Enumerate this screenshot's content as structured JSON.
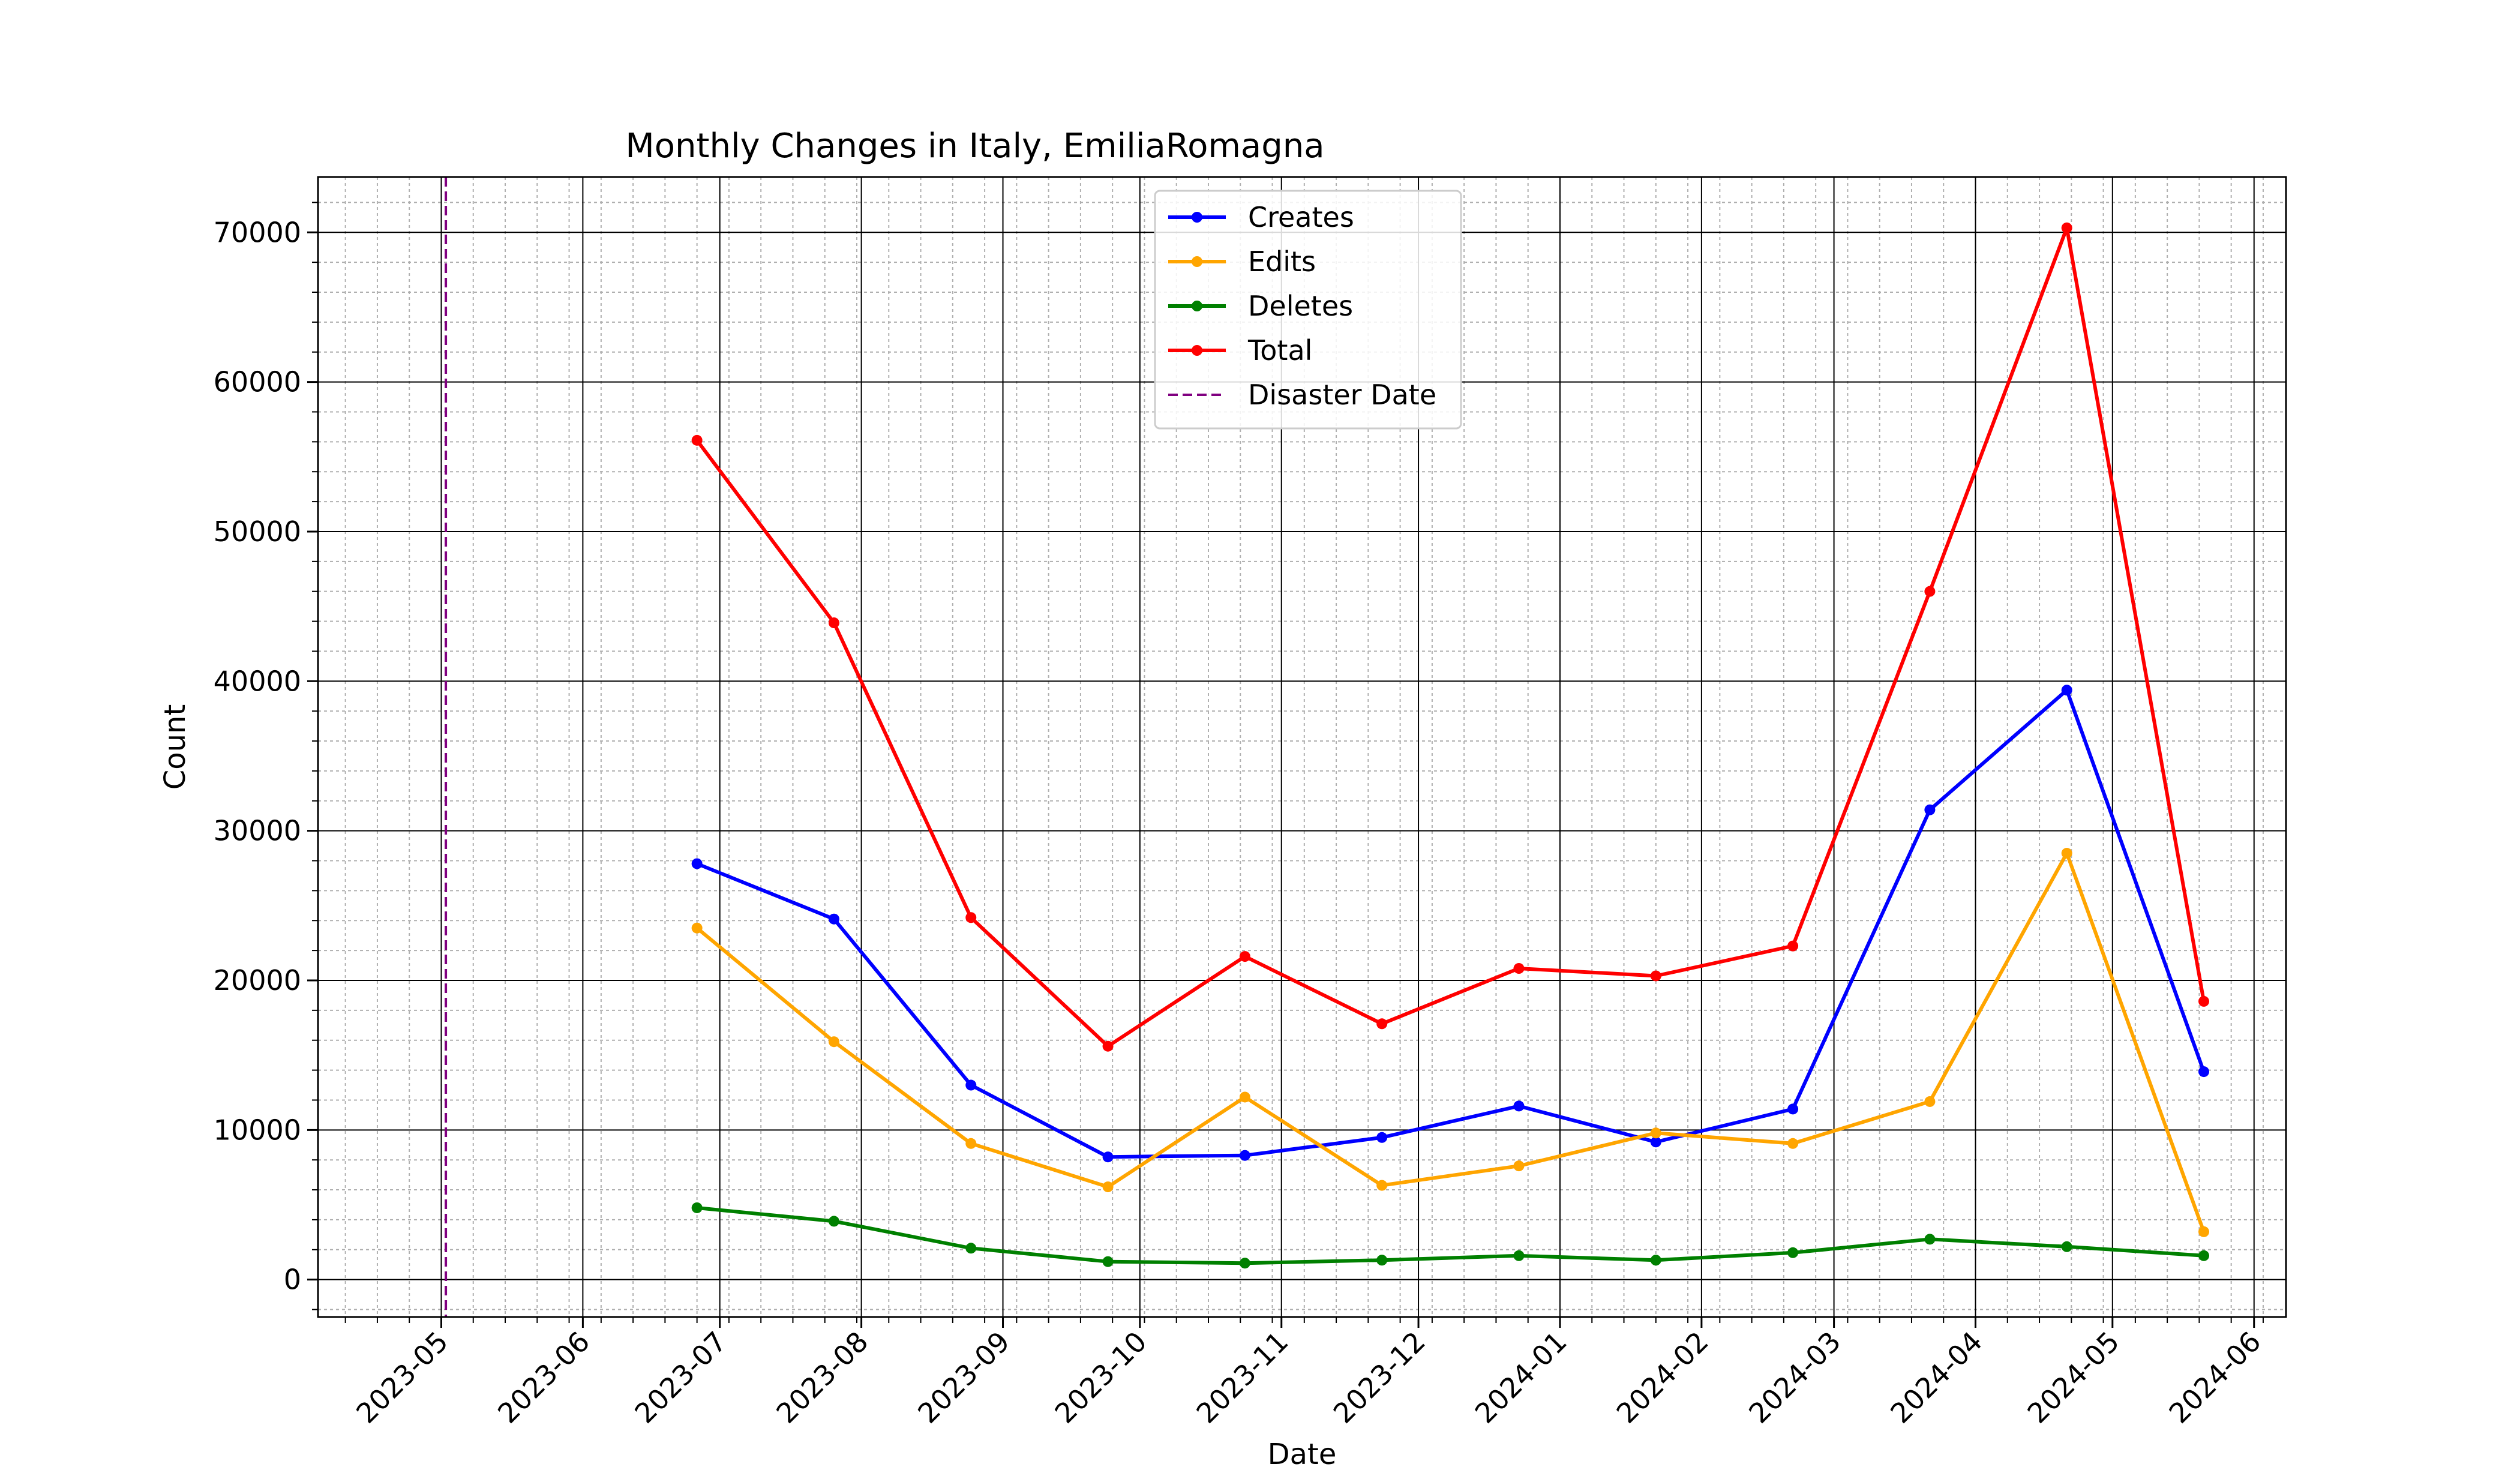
{
  "chart_data": {
    "type": "line",
    "title": "Monthly Changes in Italy, EmiliaRomagna",
    "xlabel": "Date",
    "ylabel": "Count",
    "x_type": "date",
    "xlim": [
      "2023-04-04",
      "2024-06-08"
    ],
    "ylim": [
      -2500,
      73700
    ],
    "x_ticks": [
      "2023-05",
      "2023-06",
      "2023-07",
      "2023-08",
      "2023-09",
      "2023-10",
      "2023-11",
      "2023-12",
      "2024-01",
      "2024-02",
      "2024-03",
      "2024-04",
      "2024-05",
      "2024-06"
    ],
    "y_ticks": [
      0,
      10000,
      20000,
      30000,
      40000,
      50000,
      60000,
      70000
    ],
    "y_tick_labels": [
      "0",
      "10000",
      "20000",
      "30000",
      "40000",
      "50000",
      "60000",
      "70000"
    ],
    "grid": true,
    "minor_grid": true,
    "legend_position": "top-center",
    "x": [
      "2023-06-26",
      "2023-07-26",
      "2023-08-25",
      "2023-09-24",
      "2023-10-24",
      "2023-11-23",
      "2023-12-23",
      "2024-01-22",
      "2024-02-21",
      "2024-03-22",
      "2024-04-21",
      "2024-05-21"
    ],
    "series": [
      {
        "name": "Creates",
        "color": "#0000ff",
        "values": [
          27800,
          24100,
          13000,
          8200,
          8300,
          9500,
          11600,
          9200,
          11400,
          31400,
          39400,
          13900
        ]
      },
      {
        "name": "Edits",
        "color": "#ffa500",
        "values": [
          23500,
          15900,
          9100,
          6200,
          12200,
          6300,
          7600,
          9800,
          9100,
          11900,
          28500,
          3200
        ]
      },
      {
        "name": "Deletes",
        "color": "#008000",
        "values": [
          4800,
          3900,
          2100,
          1200,
          1100,
          1300,
          1600,
          1300,
          1800,
          2700,
          2200,
          1600
        ]
      },
      {
        "name": "Total",
        "color": "#ff0000",
        "values": [
          56100,
          43900,
          24200,
          15600,
          21600,
          17100,
          20800,
          20300,
          22300,
          46000,
          70300,
          18600
        ]
      }
    ],
    "annotations": [
      {
        "name": "Disaster Date",
        "type": "vline",
        "x": "2023-05-02",
        "color": "#800080",
        "style": "dashed"
      }
    ]
  }
}
